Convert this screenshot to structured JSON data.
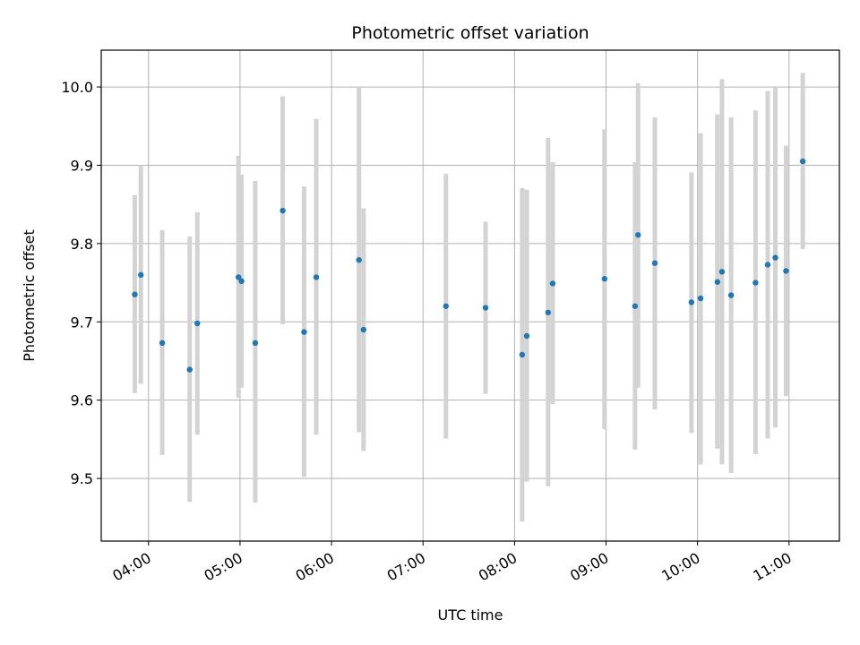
{
  "chart_data": {
    "type": "scatter",
    "title": "Photometric offset variation",
    "xlabel": "UTC time",
    "ylabel": "Photometric offset",
    "x_unit": "UTC time (HH:MM)",
    "xlim": [
      "03:29",
      "11:33"
    ],
    "ylim": [
      9.42,
      10.047
    ],
    "x_ticks": [
      "04:00",
      "05:00",
      "06:00",
      "07:00",
      "08:00",
      "09:00",
      "10:00",
      "11:00"
    ],
    "y_ticks": [
      9.5,
      9.6,
      9.7,
      9.8,
      9.9,
      10.0
    ],
    "y_tick_labels": [
      "9.5",
      "9.6",
      "9.7",
      "9.8",
      "9.9",
      "10.0"
    ],
    "grid": true,
    "legend": false,
    "point_color": "#1f77b4",
    "errorbar_color": "#d3d3d3",
    "points": [
      {
        "time": "03:51",
        "y": 9.735,
        "lo": 9.609,
        "hi": 9.862
      },
      {
        "time": "03:55",
        "y": 9.76,
        "lo": 9.621,
        "hi": 9.9
      },
      {
        "time": "04:09",
        "y": 9.673,
        "lo": 9.53,
        "hi": 9.817
      },
      {
        "time": "04:27",
        "y": 9.639,
        "lo": 9.47,
        "hi": 9.809
      },
      {
        "time": "04:32",
        "y": 9.698,
        "lo": 9.556,
        "hi": 9.84
      },
      {
        "time": "04:59",
        "y": 9.757,
        "lo": 9.603,
        "hi": 9.912
      },
      {
        "time": "05:01",
        "y": 9.752,
        "lo": 9.616,
        "hi": 9.888
      },
      {
        "time": "05:10",
        "y": 9.673,
        "lo": 9.469,
        "hi": 9.88
      },
      {
        "time": "05:28",
        "y": 9.842,
        "lo": 9.697,
        "hi": 9.988
      },
      {
        "time": "05:42",
        "y": 9.687,
        "lo": 9.502,
        "hi": 9.873
      },
      {
        "time": "05:50",
        "y": 9.757,
        "lo": 9.556,
        "hi": 9.959
      },
      {
        "time": "06:18",
        "y": 9.779,
        "lo": 9.559,
        "hi": 10.0
      },
      {
        "time": "06:21",
        "y": 9.69,
        "lo": 9.535,
        "hi": 9.845
      },
      {
        "time": "07:15",
        "y": 9.72,
        "lo": 9.551,
        "hi": 9.889
      },
      {
        "time": "07:41",
        "y": 9.718,
        "lo": 9.608,
        "hi": 9.828
      },
      {
        "time": "08:05",
        "y": 9.658,
        "lo": 9.445,
        "hi": 9.871
      },
      {
        "time": "08:08",
        "y": 9.682,
        "lo": 9.496,
        "hi": 9.869
      },
      {
        "time": "08:22",
        "y": 9.712,
        "lo": 9.49,
        "hi": 9.935
      },
      {
        "time": "08:25",
        "y": 9.749,
        "lo": 9.595,
        "hi": 9.904
      },
      {
        "time": "08:59",
        "y": 9.755,
        "lo": 9.563,
        "hi": 9.946
      },
      {
        "time": "09:19",
        "y": 9.72,
        "lo": 9.537,
        "hi": 9.904
      },
      {
        "time": "09:21",
        "y": 9.811,
        "lo": 9.616,
        "hi": 10.005
      },
      {
        "time": "09:32",
        "y": 9.775,
        "lo": 9.588,
        "hi": 9.961
      },
      {
        "time": "09:56",
        "y": 9.725,
        "lo": 9.558,
        "hi": 9.891
      },
      {
        "time": "10:02",
        "y": 9.73,
        "lo": 9.518,
        "hi": 9.941
      },
      {
        "time": "10:13",
        "y": 9.751,
        "lo": 9.538,
        "hi": 9.965
      },
      {
        "time": "10:16",
        "y": 9.764,
        "lo": 9.518,
        "hi": 10.01
      },
      {
        "time": "10:22",
        "y": 9.734,
        "lo": 9.507,
        "hi": 9.961
      },
      {
        "time": "10:38",
        "y": 9.75,
        "lo": 9.531,
        "hi": 9.97
      },
      {
        "time": "10:46",
        "y": 9.773,
        "lo": 9.551,
        "hi": 9.995
      },
      {
        "time": "10:51",
        "y": 9.782,
        "lo": 9.565,
        "hi": 10.0
      },
      {
        "time": "10:58",
        "y": 9.765,
        "lo": 9.605,
        "hi": 9.925
      },
      {
        "time": "11:09",
        "y": 9.905,
        "lo": 9.793,
        "hi": 10.018
      }
    ]
  }
}
